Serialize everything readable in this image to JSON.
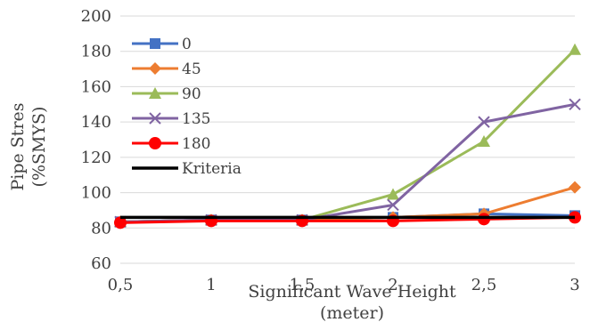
{
  "chart_data": {
    "type": "line",
    "x": [
      "0,5",
      "1",
      "1,5",
      "2",
      "2,5",
      "3"
    ],
    "ylim": [
      60,
      200
    ],
    "yticks": [
      "60",
      "80",
      "100",
      "120",
      "140",
      "160",
      "180",
      "200"
    ],
    "ylabel": [
      "Pipe Stres",
      "(%SMYS)"
    ],
    "xlabel": [
      "Significant Wave Height",
      "(meter)"
    ],
    "grid": "horizontal",
    "legend_position": "left",
    "series": [
      {
        "name": "0",
        "color": "#4472C4",
        "marker": "square",
        "values": [
          83.5,
          84.5,
          84.5,
          86,
          88,
          87
        ]
      },
      {
        "name": "45",
        "color": "#ED7D31",
        "marker": "diamond",
        "values": [
          83.5,
          84.5,
          84.5,
          86,
          88,
          103
        ]
      },
      {
        "name": "90",
        "color": "#9BBB59",
        "marker": "triangle",
        "values": [
          83.5,
          84.5,
          84.5,
          99,
          129,
          181
        ]
      },
      {
        "name": "135",
        "color": "#8064A2",
        "marker": "x",
        "values": [
          83.5,
          84.5,
          84.5,
          93,
          140,
          150
        ]
      },
      {
        "name": "180",
        "color": "#FF0000",
        "marker": "circle",
        "values": [
          83,
          84,
          84,
          84,
          85,
          86
        ]
      },
      {
        "name": "Kriteria",
        "color": "#000000",
        "marker": "none",
        "values": [
          86,
          86,
          86,
          86,
          86,
          86
        ]
      }
    ]
  }
}
